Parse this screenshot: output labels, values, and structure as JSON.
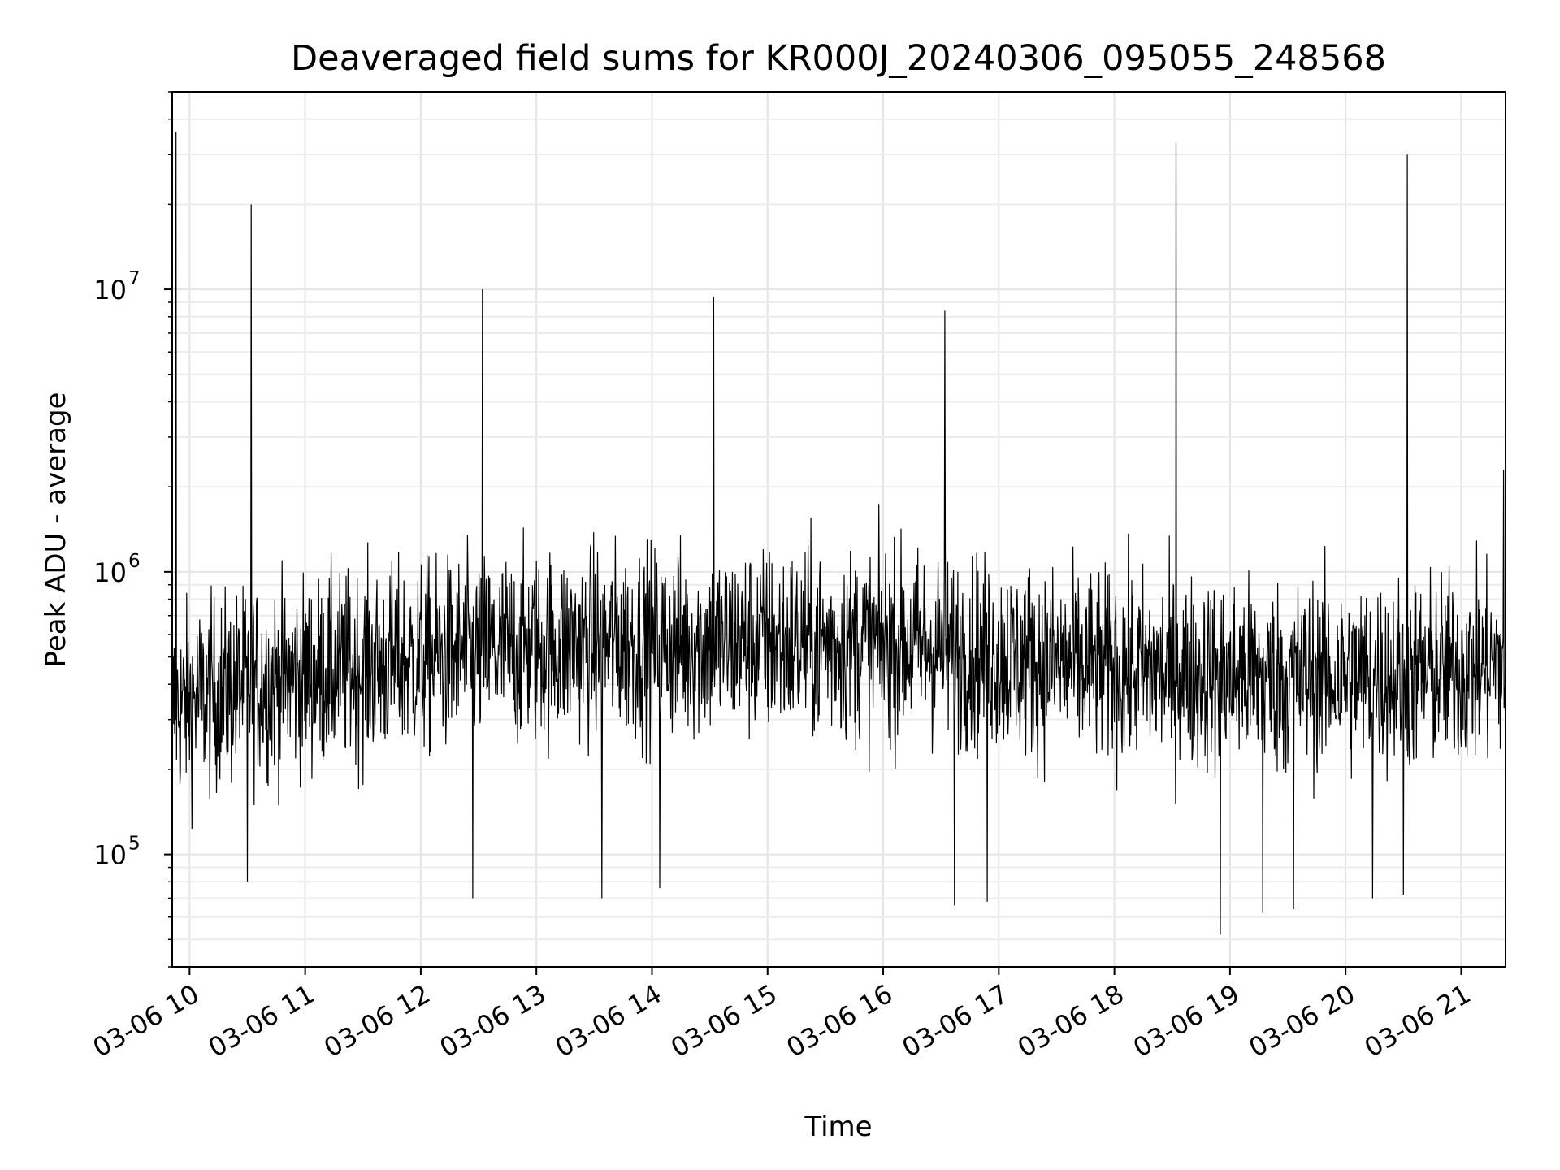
{
  "chart_data": {
    "type": "line",
    "title": "Deaveraged field sums for KR000J_20240306_095055_248568",
    "xlabel": "Time",
    "ylabel": "Peak ADU - average",
    "x_ticks": [
      "03-06 10",
      "03-06 11",
      "03-06 12",
      "03-06 13",
      "03-06 14",
      "03-06 15",
      "03-06 16",
      "03-06 17",
      "03-06 18",
      "03-06 19",
      "03-06 20",
      "03-06 21"
    ],
    "y_ticks": [
      {
        "value": 100000,
        "base": "10",
        "exp": "5"
      },
      {
        "value": 1000000,
        "base": "10",
        "exp": "6"
      },
      {
        "value": 10000000,
        "base": "10",
        "exp": "7"
      }
    ],
    "y_scale": "log",
    "xlim": [
      "2024-03-06 09:51",
      "2024-03-06 21:23"
    ],
    "ylim": [
      40000,
      50000000
    ],
    "grid": true,
    "line_color": "#000000",
    "baseline_profile": [
      {
        "x": "2024-03-06 09:51",
        "y": 330000
      },
      {
        "x": "2024-03-06 10:30",
        "y": 400000
      },
      {
        "x": "2024-03-06 11:30",
        "y": 460000
      },
      {
        "x": "2024-03-06 12:30",
        "y": 520000
      },
      {
        "x": "2024-03-06 13:30",
        "y": 560000
      },
      {
        "x": "2024-03-06 14:30",
        "y": 560000
      },
      {
        "x": "2024-03-06 15:30",
        "y": 560000
      },
      {
        "x": "2024-03-06 16:30",
        "y": 540000
      },
      {
        "x": "2024-03-06 17:30",
        "y": 470000
      },
      {
        "x": "2024-03-06 18:30",
        "y": 440000
      },
      {
        "x": "2024-03-06 19:30",
        "y": 420000
      },
      {
        "x": "2024-03-06 20:30",
        "y": 430000
      },
      {
        "x": "2024-03-06 21:23",
        "y": 470000
      }
    ],
    "spikes": [
      {
        "x": "2024-03-06 09:53",
        "y": 36000000
      },
      {
        "x": "2024-03-06 10:32",
        "y": 20000000
      },
      {
        "x": "2024-03-06 12:32",
        "y": 10000000
      },
      {
        "x": "2024-03-06 14:32",
        "y": 9400000
      },
      {
        "x": "2024-03-06 16:32",
        "y": 8400000
      },
      {
        "x": "2024-03-06 18:32",
        "y": 33000000
      },
      {
        "x": "2024-03-06 20:32",
        "y": 30000000
      },
      {
        "x": "2024-03-06 21:22",
        "y": 2300000
      }
    ],
    "dips": [
      {
        "x": "2024-03-06 10:30",
        "y": 80000
      },
      {
        "x": "2024-03-06 12:27",
        "y": 70000
      },
      {
        "x": "2024-03-06 13:34",
        "y": 70000
      },
      {
        "x": "2024-03-06 14:04",
        "y": 76000
      },
      {
        "x": "2024-03-06 16:37",
        "y": 66000
      },
      {
        "x": "2024-03-06 16:54",
        "y": 68000
      },
      {
        "x": "2024-03-06 18:55",
        "y": 52000
      },
      {
        "x": "2024-03-06 19:17",
        "y": 62000
      },
      {
        "x": "2024-03-06 19:33",
        "y": 64000
      },
      {
        "x": "2024-03-06 20:14",
        "y": 70000
      },
      {
        "x": "2024-03-06 20:30",
        "y": 72000
      }
    ],
    "noise_band": {
      "min": 90000,
      "max": 1800000
    }
  }
}
